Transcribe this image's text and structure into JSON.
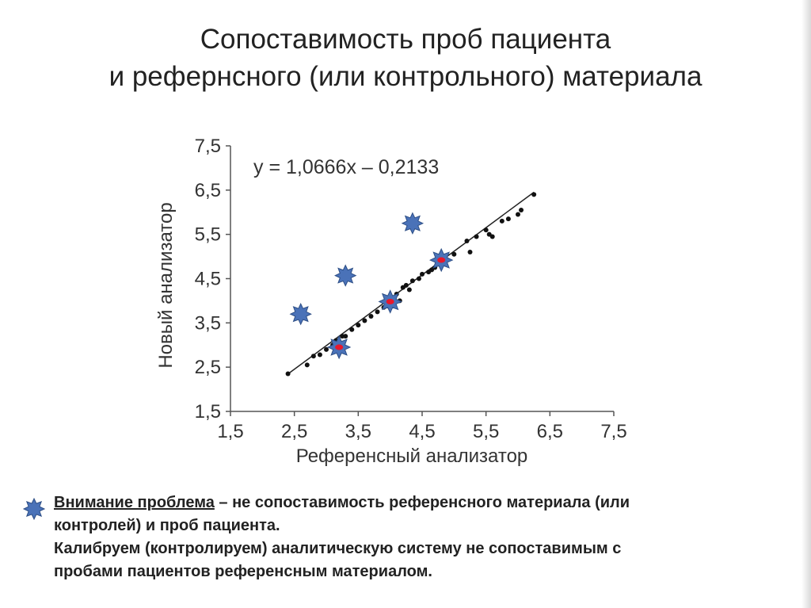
{
  "slide": {
    "title_line1": "Сопоставимость проб пациента",
    "title_line2": "и рефернсного (или контрольного) материала"
  },
  "chart_data": {
    "type": "scatter",
    "equation": "y = 1,0666x – 0,2133",
    "xlabel": "Референсный анализатор",
    "ylabel": "Новый анализатор",
    "xlim": [
      1.5,
      7.5
    ],
    "ylim": [
      1.5,
      7.5
    ],
    "x_ticks": [
      "1,5",
      "2,5",
      "3,5",
      "4,5",
      "5,5",
      "6,5",
      "7,5"
    ],
    "y_ticks": [
      "1,5",
      "2,5",
      "3,5",
      "4,5",
      "5,5",
      "6,5",
      "7,5"
    ],
    "trendline": {
      "slope": 1.0666,
      "intercept": -0.2133,
      "x_range": [
        2.4,
        6.25
      ]
    },
    "series": [
      {
        "kind": "patient-samples",
        "color": "#111111",
        "points": [
          [
            2.4,
            2.35
          ],
          [
            2.7,
            2.55
          ],
          [
            2.8,
            2.75
          ],
          [
            2.9,
            2.78
          ],
          [
            3.0,
            2.9
          ],
          [
            3.1,
            3.0
          ],
          [
            3.15,
            3.1
          ],
          [
            3.25,
            3.2
          ],
          [
            3.3,
            3.2
          ],
          [
            3.4,
            3.35
          ],
          [
            3.5,
            3.45
          ],
          [
            3.6,
            3.55
          ],
          [
            3.7,
            3.65
          ],
          [
            3.8,
            3.75
          ],
          [
            3.9,
            3.85
          ],
          [
            3.95,
            3.9
          ],
          [
            4.05,
            4.05
          ],
          [
            4.1,
            4.15
          ],
          [
            4.15,
            4.0
          ],
          [
            4.2,
            4.3
          ],
          [
            4.25,
            4.35
          ],
          [
            4.3,
            4.25
          ],
          [
            4.35,
            4.45
          ],
          [
            4.45,
            4.5
          ],
          [
            4.5,
            4.6
          ],
          [
            4.6,
            4.65
          ],
          [
            4.65,
            4.7
          ],
          [
            4.7,
            4.75
          ],
          [
            4.8,
            4.9
          ],
          [
            4.85,
            4.95
          ],
          [
            5.0,
            5.05
          ],
          [
            5.2,
            5.35
          ],
          [
            5.25,
            5.1
          ],
          [
            5.35,
            5.45
          ],
          [
            5.5,
            5.6
          ],
          [
            5.55,
            5.5
          ],
          [
            5.6,
            5.45
          ],
          [
            5.75,
            5.8
          ],
          [
            5.85,
            5.85
          ],
          [
            6.0,
            5.95
          ],
          [
            6.05,
            6.05
          ],
          [
            6.25,
            6.4
          ]
        ]
      },
      {
        "kind": "reference-material-on-line",
        "color": "#4a72b8",
        "center_color": "#e8182c",
        "points": [
          [
            3.2,
            2.95
          ],
          [
            4.0,
            3.98
          ],
          [
            4.8,
            4.92
          ]
        ]
      },
      {
        "kind": "reference-material-off-line",
        "color": "#4a72b8",
        "points": [
          [
            2.6,
            3.7
          ],
          [
            3.3,
            4.57
          ],
          [
            4.35,
            5.75
          ]
        ]
      }
    ]
  },
  "note": {
    "emphasis": "Внимание проблема",
    "line1_rest": " – не сопоставимость референсного материала (или",
    "line2": "контролей) и проб пациента.",
    "line3": "Калибруем (контролируем) аналитическую систему не сопоставимым с",
    "line4": "пробами пациентов референсным материалом.",
    "star_color": "#4a72b8"
  }
}
